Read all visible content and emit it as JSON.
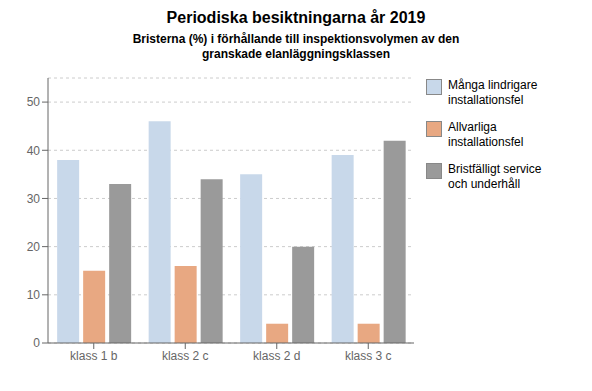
{
  "chart_data": {
    "type": "bar",
    "title": "Periodiska besiktningarna  år 2019",
    "subtitle": "Bristerna (%) i förhållande till  inspektionsvolymen av den\ngranskade elanläggningsklassen",
    "categories": [
      "klass 1 b",
      "klass 2 c",
      "klass 2 d",
      "klass 3 c"
    ],
    "series": [
      {
        "name": "Många lindrigare\ninstallationsfel",
        "color": "#c8d8ea",
        "values": [
          38,
          46,
          35,
          39
        ]
      },
      {
        "name": "Allvarliga\ninstallationsfel",
        "color": "#e8a882",
        "values": [
          15,
          16,
          4,
          4
        ]
      },
      {
        "name": "Bristfälligt service\noch underhåll",
        "color": "#9a9a9a",
        "values": [
          33,
          34,
          20,
          42
        ]
      }
    ],
    "ylim": [
      0,
      55
    ],
    "yticks": [
      0,
      10,
      20,
      30,
      40,
      50
    ],
    "grid": true,
    "legend": "right"
  }
}
